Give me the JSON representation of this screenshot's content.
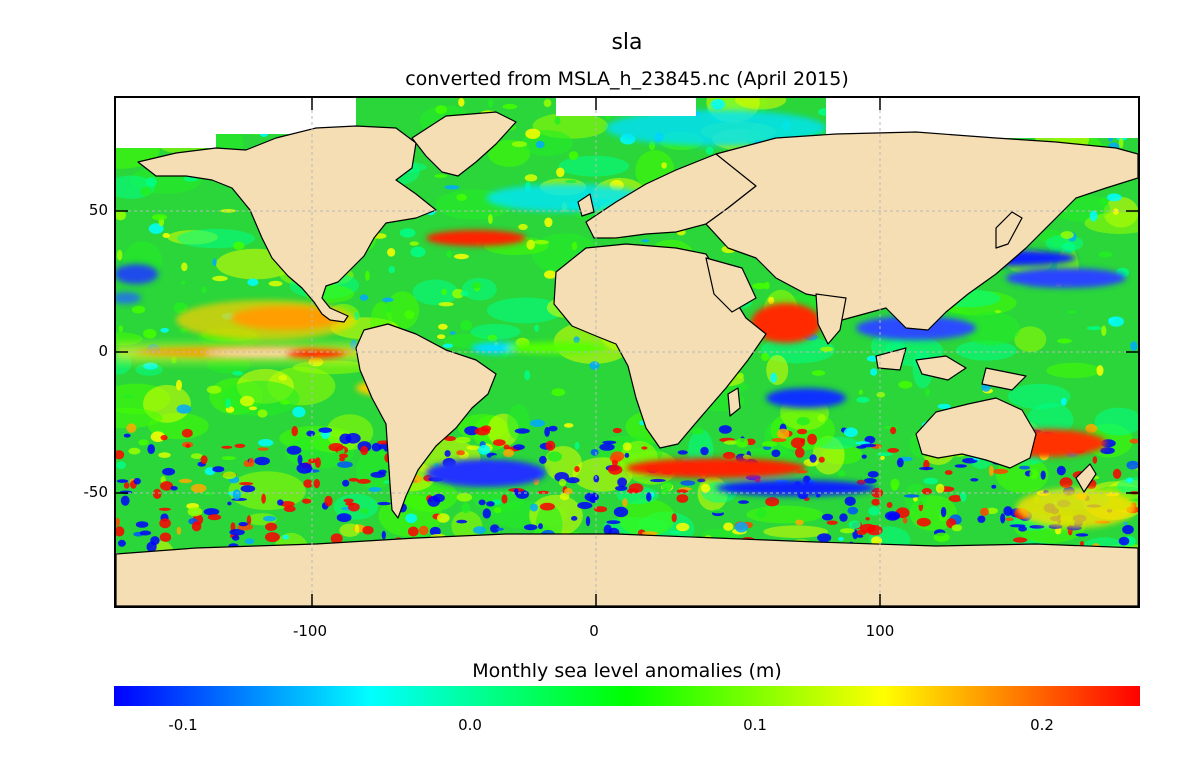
{
  "title": "sla",
  "subtitle": "converted from MSLA_h_23845.nc (April 2015)",
  "colorbar": {
    "label": "Monthly sea level anomalies (m)",
    "ticks": [
      "-0.1",
      "0.0",
      "0.1",
      "0.2"
    ],
    "tick_values": [
      -0.1,
      0.0,
      0.1,
      0.2
    ],
    "range": [
      -0.13,
      0.23
    ],
    "colormap": [
      "#0000ff",
      "#00ffff",
      "#00ff00",
      "#ffff00",
      "#ff0000"
    ]
  },
  "map": {
    "x_ticks": [
      "-100",
      "0",
      "100"
    ],
    "x_tick_values": [
      -100,
      0,
      100
    ],
    "y_ticks": [
      "50",
      "0",
      "-50"
    ],
    "y_tick_values": [
      50,
      0,
      -50
    ],
    "lon_range": [
      -170,
      190
    ],
    "lat_range": [
      -90,
      90
    ],
    "land_color": "#f5deb3",
    "no_data_color": "#ffffff",
    "grid": true
  }
}
